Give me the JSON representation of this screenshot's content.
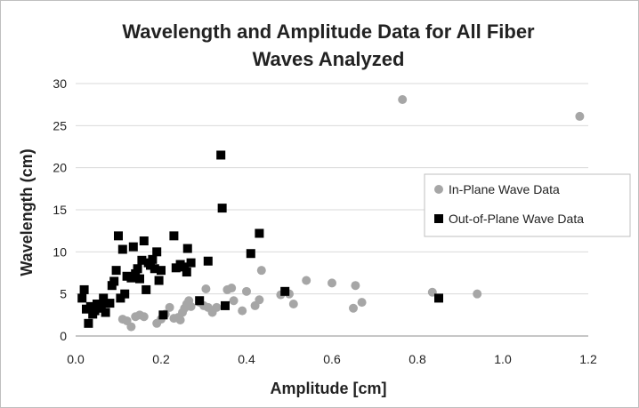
{
  "chart_data": {
    "type": "scatter",
    "title_line1": "Wavelength and Amplitude Data for All Fiber",
    "title_line2": "Waves Analyzed",
    "xlabel": "Amplitude [cm]",
    "ylabel": "Wavelength (cm)",
    "xlim": [
      0,
      1.2
    ],
    "ylim": [
      0,
      30
    ],
    "xticks": [
      "0.0",
      "0.2",
      "0.4",
      "0.6",
      "0.8",
      "1.0",
      "1.2"
    ],
    "yticks": [
      "0",
      "5",
      "10",
      "15",
      "20",
      "25",
      "30"
    ],
    "grid": "horizontal",
    "legend_position": "right",
    "series": [
      {
        "name": "In-Plane Wave Data",
        "marker": "circle",
        "color": "#a6a6a6",
        "points": [
          [
            0.11,
            2.0
          ],
          [
            0.12,
            1.8
          ],
          [
            0.13,
            1.1
          ],
          [
            0.14,
            2.3
          ],
          [
            0.15,
            2.5
          ],
          [
            0.16,
            2.3
          ],
          [
            0.19,
            1.5
          ],
          [
            0.2,
            2.0
          ],
          [
            0.21,
            2.6
          ],
          [
            0.22,
            3.4
          ],
          [
            0.23,
            2.1
          ],
          [
            0.24,
            2.2
          ],
          [
            0.245,
            1.9
          ],
          [
            0.25,
            2.8
          ],
          [
            0.255,
            3.3
          ],
          [
            0.26,
            3.8
          ],
          [
            0.265,
            4.2
          ],
          [
            0.27,
            3.5
          ],
          [
            0.29,
            4.0
          ],
          [
            0.3,
            3.6
          ],
          [
            0.31,
            3.4
          ],
          [
            0.305,
            5.6
          ],
          [
            0.32,
            2.8
          ],
          [
            0.33,
            3.4
          ],
          [
            0.355,
            5.5
          ],
          [
            0.365,
            5.7
          ],
          [
            0.37,
            4.2
          ],
          [
            0.39,
            3.0
          ],
          [
            0.4,
            5.3
          ],
          [
            0.42,
            3.6
          ],
          [
            0.43,
            4.3
          ],
          [
            0.435,
            7.8
          ],
          [
            0.48,
            4.9
          ],
          [
            0.5,
            5.0
          ],
          [
            0.51,
            3.8
          ],
          [
            0.54,
            6.6
          ],
          [
            0.6,
            6.3
          ],
          [
            0.65,
            3.3
          ],
          [
            0.655,
            6.0
          ],
          [
            0.67,
            4.0
          ],
          [
            0.835,
            5.2
          ],
          [
            0.94,
            5.0
          ],
          [
            0.765,
            28.1
          ],
          [
            1.18,
            26.1
          ]
        ]
      },
      {
        "name": "Out-of-Plane Wave Data",
        "marker": "square",
        "color": "#000000",
        "points": [
          [
            0.015,
            4.5
          ],
          [
            0.02,
            5.5
          ],
          [
            0.025,
            3.2
          ],
          [
            0.03,
            1.5
          ],
          [
            0.035,
            3.5
          ],
          [
            0.04,
            2.6
          ],
          [
            0.045,
            3.0
          ],
          [
            0.05,
            3.8
          ],
          [
            0.055,
            3.3
          ],
          [
            0.06,
            3.6
          ],
          [
            0.065,
            4.5
          ],
          [
            0.07,
            2.8
          ],
          [
            0.08,
            3.9
          ],
          [
            0.085,
            6.0
          ],
          [
            0.09,
            6.5
          ],
          [
            0.095,
            7.8
          ],
          [
            0.1,
            11.9
          ],
          [
            0.105,
            4.5
          ],
          [
            0.11,
            10.3
          ],
          [
            0.115,
            5.0
          ],
          [
            0.12,
            7.1
          ],
          [
            0.13,
            6.9
          ],
          [
            0.135,
            10.6
          ],
          [
            0.14,
            7.4
          ],
          [
            0.145,
            8.0
          ],
          [
            0.15,
            6.8
          ],
          [
            0.155,
            9.0
          ],
          [
            0.16,
            11.3
          ],
          [
            0.165,
            5.5
          ],
          [
            0.17,
            8.7
          ],
          [
            0.175,
            8.4
          ],
          [
            0.18,
            9.1
          ],
          [
            0.185,
            8.0
          ],
          [
            0.19,
            10.0
          ],
          [
            0.195,
            6.6
          ],
          [
            0.2,
            7.8
          ],
          [
            0.205,
            2.5
          ],
          [
            0.23,
            11.9
          ],
          [
            0.235,
            8.1
          ],
          [
            0.245,
            8.5
          ],
          [
            0.255,
            8.2
          ],
          [
            0.26,
            7.6
          ],
          [
            0.262,
            10.4
          ],
          [
            0.27,
            8.7
          ],
          [
            0.29,
            4.2
          ],
          [
            0.31,
            8.9
          ],
          [
            0.34,
            21.5
          ],
          [
            0.343,
            15.2
          ],
          [
            0.35,
            3.6
          ],
          [
            0.41,
            9.8
          ],
          [
            0.43,
            12.2
          ],
          [
            0.49,
            5.3
          ],
          [
            0.85,
            4.5
          ]
        ]
      }
    ]
  }
}
